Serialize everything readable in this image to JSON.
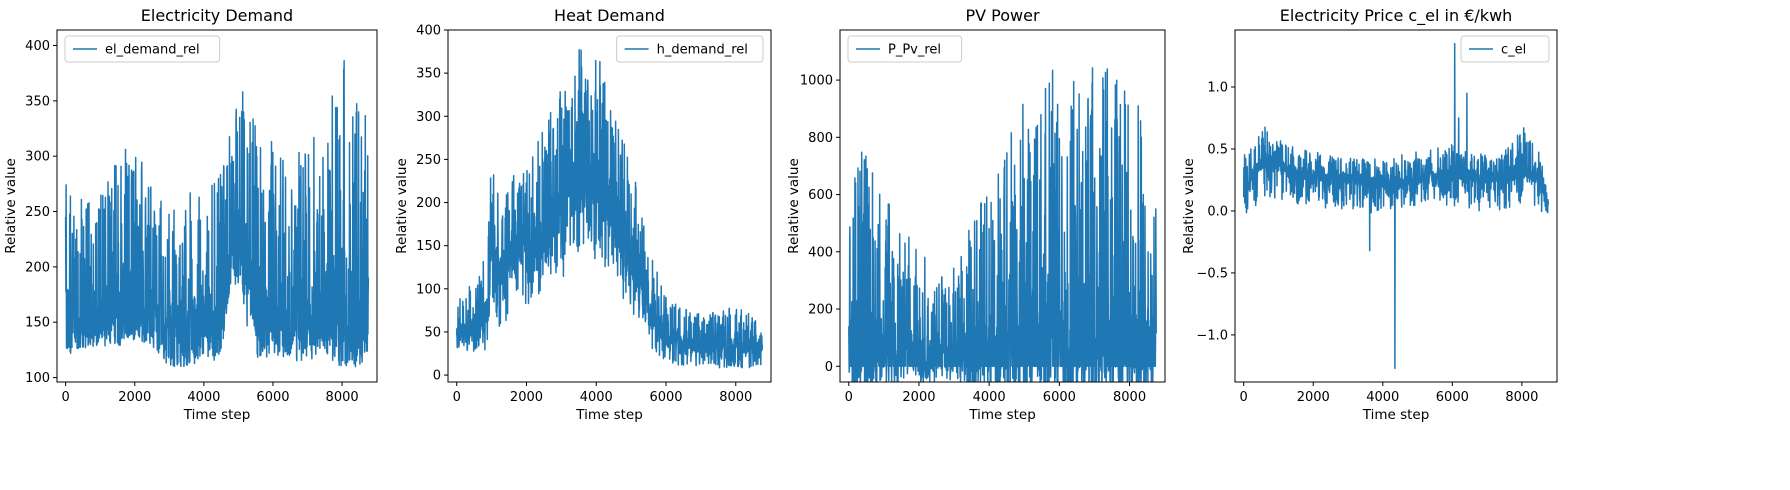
{
  "chart_data": [
    {
      "type": "line",
      "title": "Electricity Demand",
      "xlabel": "Time step",
      "ylabel": "Relative value",
      "xlim": [
        -250,
        9010
      ],
      "ylim": [
        96,
        414
      ],
      "xticks": [
        0,
        2000,
        4000,
        6000,
        8000
      ],
      "yticks": [
        100,
        150,
        200,
        250,
        300,
        350,
        400
      ],
      "legend": "top-left",
      "series": [
        {
          "name": "el_demand_rel",
          "color": "#1f77b4",
          "profile": {
            "x": [
              0,
              500,
              1000,
              1500,
              2000,
              2500,
              3000,
              3500,
              4000,
              4500,
              4800,
              5000,
              5500,
              6000,
              6500,
              7000,
              7500,
              8000,
              8500,
              8760
            ],
            "base": [
              138,
              145,
              150,
              152,
              155,
              150,
              130,
              132,
              138,
              140,
              205,
              210,
              150,
              148,
              145,
              150,
              152,
              150,
              145,
              150
            ],
            "peak": [
              280,
              275,
              270,
              300,
              315,
              270,
              255,
              270,
              275,
              285,
              340,
              380,
              330,
              320,
              300,
              315,
              330,
              398,
              370,
              330
            ],
            "min": [
              125,
              125,
              128,
              130,
              140,
              125,
              110,
              110,
              112,
              115,
              190,
              175,
              118,
              118,
              115,
              115,
              115,
              110,
              108,
              120
            ]
          }
        }
      ]
    },
    {
      "type": "line",
      "title": "Heat Demand",
      "xlabel": "Time step",
      "ylabel": "Relative value",
      "xlim": [
        -250,
        9010
      ],
      "ylim": [
        -8,
        400
      ],
      "xticks": [
        0,
        2000,
        4000,
        6000,
        8000
      ],
      "yticks": [
        0,
        50,
        100,
        150,
        200,
        250,
        300,
        350,
        400
      ],
      "legend": "top-right",
      "series": [
        {
          "name": "h_demand_rel",
          "color": "#1f77b4",
          "profile": {
            "x": [
              0,
              500,
              900,
              1000,
              1200,
              1600,
              2000,
              2500,
              3000,
              3500,
              4000,
              4500,
              5000,
              5500,
              6000,
              6500,
              7000,
              7500,
              8000,
              8500,
              8760
            ],
            "base": [
              45,
              50,
              70,
              160,
              110,
              130,
              150,
              160,
              190,
              220,
              215,
              180,
              130,
              70,
              40,
              35,
              30,
              30,
              28,
              30,
              30
            ],
            "peak": [
              90,
              110,
              150,
              300,
              200,
              230,
              260,
              290,
              340,
              380,
              380,
              320,
              250,
              150,
              90,
              80,
              70,
              75,
              80,
              70,
              50
            ],
            "min": [
              25,
              25,
              30,
              80,
              55,
              70,
              80,
              100,
              110,
              130,
              130,
              110,
              70,
              35,
              15,
              10,
              10,
              8,
              8,
              8,
              10
            ]
          }
        }
      ]
    },
    {
      "type": "line",
      "title": "PV Power",
      "xlabel": "Time step",
      "ylabel": "Relative value",
      "xlim": [
        -250,
        9010
      ],
      "ylim": [
        -55,
        1175
      ],
      "xticks": [
        0,
        2000,
        4000,
        6000,
        8000
      ],
      "yticks": [
        0,
        200,
        400,
        600,
        800,
        1000
      ],
      "legend": "top-left",
      "series": [
        {
          "name": "P_Pv_rel",
          "color": "#1f77b4",
          "profile": {
            "x": [
              0,
              100,
              400,
              800,
              1200,
              1600,
              2000,
              2400,
              2800,
              3200,
              3600,
              4000,
              4400,
              4800,
              5200,
              5600,
              6000,
              6400,
              6800,
              7200,
              7600,
              8000,
              8400,
              8760
            ],
            "base": [
              0,
              0,
              0,
              0,
              0,
              0,
              0,
              0,
              0,
              0,
              0,
              0,
              0,
              0,
              0,
              0,
              0,
              0,
              0,
              0,
              0,
              0,
              0,
              0
            ],
            "peak": [
              330,
              880,
              780,
              640,
              560,
              470,
              410,
              340,
              300,
              420,
              540,
              660,
              780,
              900,
              960,
              1020,
              1060,
              1090,
              1120,
              1080,
              1050,
              1000,
              880,
              580
            ],
            "min": [
              0,
              0,
              0,
              0,
              0,
              0,
              0,
              0,
              0,
              0,
              0,
              0,
              0,
              0,
              0,
              0,
              0,
              0,
              0,
              0,
              0,
              0,
              0,
              0
            ]
          }
        }
      ]
    },
    {
      "type": "line",
      "title": "Electricity Price c_el in €/kwh",
      "xlabel": "Time step",
      "ylabel": "Relative value",
      "xlim": [
        -250,
        9010
      ],
      "ylim": [
        -1.38,
        1.46
      ],
      "xticks": [
        0,
        2000,
        4000,
        6000,
        8000
      ],
      "yticks": [
        -1.0,
        -0.5,
        0.0,
        0.5,
        1.0
      ],
      "legend": "top-right",
      "series": [
        {
          "name": "c_el",
          "color": "#1f77b4",
          "profile": {
            "x": [
              0,
              300,
              600,
              1000,
              1500,
              2000,
              2500,
              3000,
              3500,
              4000,
              4500,
              5000,
              5500,
              6000,
              6500,
              7000,
              7500,
              8000,
              8500,
              8760
            ],
            "base": [
              0.1,
              0.3,
              0.4,
              0.35,
              0.3,
              0.25,
              0.25,
              0.25,
              0.22,
              0.2,
              0.2,
              0.25,
              0.28,
              0.3,
              0.28,
              0.25,
              0.28,
              0.3,
              0.25,
              0.05
            ],
            "peak": [
              0.45,
              0.55,
              0.68,
              0.6,
              0.5,
              0.48,
              0.45,
              0.45,
              0.45,
              0.4,
              0.45,
              0.48,
              0.5,
              0.55,
              0.5,
              0.45,
              0.5,
              0.68,
              0.5,
              0.2
            ],
            "min": [
              -0.02,
              0.0,
              0.1,
              0.1,
              0.05,
              0.05,
              0.0,
              0.0,
              0.0,
              -0.05,
              0.0,
              0.05,
              0.05,
              0.02,
              0.0,
              0.0,
              0.0,
              0.05,
              0.0,
              -0.02
            ]
          },
          "spikes": [
            {
              "x": 4350,
              "y": -1.27
            },
            {
              "x": 3620,
              "y": -0.32
            },
            {
              "x": 6070,
              "y": 1.35
            },
            {
              "x": 6420,
              "y": 0.95
            },
            {
              "x": 6180,
              "y": 0.75
            },
            {
              "x": 8050,
              "y": 0.67
            }
          ]
        }
      ]
    }
  ]
}
